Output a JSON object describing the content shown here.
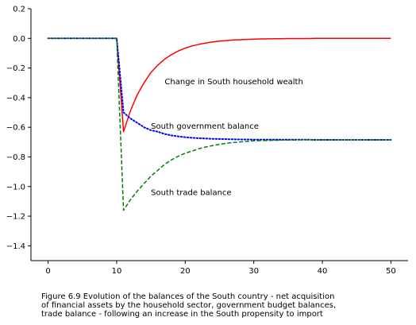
{
  "chart_data": {
    "type": "line",
    "title": "",
    "xlabel": "",
    "ylabel": "",
    "xlim": [
      -2.5,
      52.5
    ],
    "ylim": [
      -1.5,
      0.2
    ],
    "x_ticks": [
      0,
      10,
      20,
      30,
      40,
      50
    ],
    "x_tick_labels": [
      "0",
      "10",
      "20",
      "30",
      "40",
      "50"
    ],
    "y_ticks": [
      0.2,
      0.0,
      -0.2,
      -0.4,
      -0.6,
      -0.8,
      -1.0,
      -1.2,
      -1.4
    ],
    "y_tick_labels": [
      "0.2",
      "0.0",
      "−0.2",
      "−0.4",
      "−0.6",
      "−0.8",
      "−1.0",
      "−1.2",
      "−1.4"
    ],
    "grid": false,
    "legend": "none",
    "series": [
      {
        "color": "#ff0000",
        "style": "solid",
        "x": [
          0,
          1,
          2,
          3,
          4,
          5,
          6,
          7,
          8,
          9,
          10,
          11,
          12,
          13,
          14,
          15,
          16,
          17,
          18,
          19,
          20,
          21,
          22,
          23,
          24,
          25,
          26,
          27,
          28,
          29,
          30,
          31,
          32,
          33,
          34,
          35,
          36,
          37,
          38,
          39,
          40,
          41,
          42,
          43,
          44,
          45,
          46,
          47,
          48,
          49,
          50
        ],
        "values": [
          0,
          0,
          0,
          0,
          0,
          0,
          0,
          0,
          0,
          0,
          0,
          -0.63,
          -0.49,
          -0.38,
          -0.3,
          -0.23,
          -0.18,
          -0.14,
          -0.11,
          -0.085,
          -0.066,
          -0.051,
          -0.04,
          -0.031,
          -0.024,
          -0.019,
          -0.015,
          -0.011,
          -0.009,
          -0.007,
          -0.005,
          -0.004,
          -0.003,
          -0.002,
          -0.002,
          -0.001,
          -0.001,
          -0.001,
          -0.001,
          0,
          0,
          0,
          0,
          0,
          0,
          0,
          0,
          0,
          0,
          0,
          0
        ]
      },
      {
        "color": "#0000ff",
        "style": "dotted",
        "x": [
          0,
          1,
          2,
          3,
          4,
          5,
          6,
          7,
          8,
          9,
          10,
          11,
          12,
          13,
          14,
          15,
          16,
          17,
          18,
          19,
          20,
          21,
          22,
          23,
          24,
          25,
          26,
          27,
          28,
          29,
          30,
          31,
          32,
          33,
          34,
          35,
          36,
          37,
          38,
          39,
          40,
          41,
          42,
          43,
          44,
          45,
          46,
          47,
          48,
          49,
          50
        ],
        "values": [
          0,
          0,
          0,
          0,
          0,
          0,
          0,
          0,
          0,
          0,
          0,
          -0.5,
          -0.54,
          -0.57,
          -0.6,
          -0.62,
          -0.63,
          -0.645,
          -0.655,
          -0.662,
          -0.667,
          -0.671,
          -0.674,
          -0.676,
          -0.678,
          -0.679,
          -0.68,
          -0.681,
          -0.682,
          -0.682,
          -0.683,
          -0.683,
          -0.683,
          -0.684,
          -0.684,
          -0.684,
          -0.684,
          -0.684,
          -0.684,
          -0.685,
          -0.685,
          -0.685,
          -0.685,
          -0.685,
          -0.685,
          -0.685,
          -0.685,
          -0.685,
          -0.685,
          -0.685,
          -0.685
        ]
      },
      {
        "color": "#008000",
        "style": "dashed",
        "x": [
          0,
          1,
          2,
          3,
          4,
          5,
          6,
          7,
          8,
          9,
          10,
          11,
          12,
          13,
          14,
          15,
          16,
          17,
          18,
          19,
          20,
          21,
          22,
          23,
          24,
          25,
          26,
          27,
          28,
          29,
          30,
          31,
          32,
          33,
          34,
          35,
          36,
          37,
          38,
          39,
          40,
          41,
          42,
          43,
          44,
          45,
          46,
          47,
          48,
          49,
          50
        ],
        "values": [
          0,
          0,
          0,
          0,
          0,
          0,
          0,
          0,
          0,
          0,
          0,
          -1.16,
          -1.09,
          -1.03,
          -0.98,
          -0.93,
          -0.89,
          -0.85,
          -0.82,
          -0.795,
          -0.775,
          -0.76,
          -0.745,
          -0.733,
          -0.723,
          -0.715,
          -0.708,
          -0.703,
          -0.699,
          -0.695,
          -0.692,
          -0.69,
          -0.689,
          -0.688,
          -0.687,
          -0.686,
          -0.686,
          -0.685,
          -0.685,
          -0.685,
          -0.685,
          -0.685,
          -0.685,
          -0.685,
          -0.685,
          -0.685,
          -0.685,
          -0.685,
          -0.685,
          -0.685,
          -0.685
        ]
      }
    ],
    "annotations": [
      {
        "text": "Change in South household wealth",
        "x": 17,
        "y": -0.29
      },
      {
        "text": "South government balance",
        "x": 15,
        "y": -0.59
      },
      {
        "text": "South trade balance",
        "x": 15,
        "y": -1.04
      }
    ]
  },
  "caption": {
    "line1": "Figure 6.9  Evolution of the balances of the South country - net acquisition",
    "line2": "of financial assets by the household sector, government budget balances,",
    "line3": "trade balance - following an increase in the South propensity to import"
  }
}
